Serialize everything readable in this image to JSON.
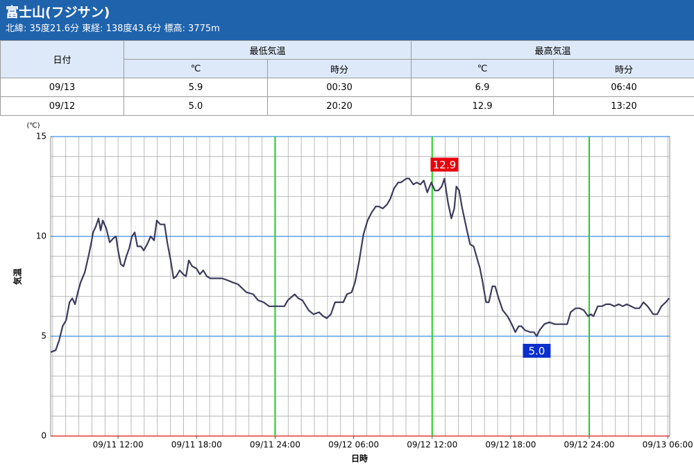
{
  "header": {
    "title": "富士山(フジサン)",
    "subtitle": "北緯: 35度21.6分 東経: 138度43.6分 標高: 3775m"
  },
  "table": {
    "date_header": "日付",
    "group_headers": [
      "最低気温",
      "最高気温"
    ],
    "sub_headers": [
      "℃",
      "時分",
      "℃",
      "時分"
    ],
    "rows": [
      [
        "09/13",
        "5.9",
        "00:30",
        "6.9",
        "06:40"
      ],
      [
        "09/12",
        "5.0",
        "20:20",
        "12.9",
        "13:20"
      ]
    ]
  },
  "chart_data": {
    "type": "line",
    "unit_label": "(℃)",
    "y_label": "気温",
    "x_label": "日時",
    "color": "#3a3a5c",
    "x": [
      6.86,
      7.23,
      7.5,
      7.76,
      8.03,
      8.29,
      8.5,
      8.71,
      8.93,
      9.14,
      9.46,
      9.77,
      9.99,
      10.09,
      10.3,
      10.51,
      10.67,
      10.83,
      11.1,
      11.36,
      11.63,
      11.84,
      12.0,
      12.21,
      12.42,
      12.63,
      12.85,
      13.06,
      13.27,
      13.48,
      13.75,
      13.96,
      14.22,
      14.49,
      14.75,
      14.96,
      15.23,
      15.55,
      15.76,
      16.02,
      16.24,
      16.45,
      16.71,
      16.98,
      17.19,
      17.4,
      17.67,
      17.98,
      18.25,
      18.51,
      18.78,
      19.04,
      19.31,
      19.94,
      20.37,
      20.74,
      21.16,
      21.8,
      22.33,
      22.7,
      23.12,
      23.54,
      23.92,
      24.44,
      24.71,
      24.97,
      25.5,
      25.77,
      26.09,
      26.56,
      26.93,
      27.36,
      27.68,
      27.94,
      28.26,
      28.58,
      28.89,
      29.21,
      29.48,
      29.85,
      30.11,
      30.43,
      30.75,
      31.07,
      31.38,
      31.7,
      31.91,
      32.23,
      32.55,
      32.81,
      33.08,
      33.4,
      33.61,
      33.82,
      34.03,
      34.24,
      34.56,
      34.83,
      35.09,
      35.36,
      35.62,
      35.94,
      36.2,
      36.47,
      36.73,
      36.94,
      37.21,
      37.47,
      37.69,
      37.85,
      38.06,
      38.27,
      38.59,
      38.9,
      39.17,
      39.43,
      39.65,
      39.86,
      40.12,
      40.33,
      40.6,
      40.81,
      41.08,
      41.39,
      41.76,
      42.08,
      42.35,
      42.61,
      42.82,
      43.09,
      43.51,
      43.78,
      43.99,
      44.2,
      44.57,
      44.94,
      45.37,
      45.79,
      46.32,
      46.58,
      46.96,
      47.27,
      47.59,
      47.91,
      48.12,
      48.33,
      48.65,
      48.97,
      49.29,
      49.6,
      49.92,
      50.24,
      50.56,
      50.87,
      51.19,
      51.51,
      51.83,
      52.15,
      52.46,
      52.89,
      53.2,
      53.52,
      53.84,
      54.11
    ],
    "values": [
      4.2,
      4.3,
      4.8,
      5.5,
      5.8,
      6.7,
      6.9,
      6.6,
      7.2,
      7.7,
      8.2,
      9.1,
      9.8,
      10.2,
      10.5,
      10.9,
      10.3,
      10.8,
      10.4,
      9.7,
      9.9,
      10.0,
      9.3,
      8.6,
      8.5,
      9.0,
      9.4,
      10.0,
      10.2,
      9.5,
      9.5,
      9.3,
      9.6,
      10.0,
      9.8,
      10.8,
      10.6,
      10.6,
      9.7,
      8.8,
      7.9,
      8.0,
      8.3,
      8.1,
      8.0,
      8.8,
      8.5,
      8.4,
      8.1,
      8.3,
      8.0,
      7.9,
      7.9,
      7.9,
      7.8,
      7.7,
      7.6,
      7.2,
      7.1,
      6.8,
      6.7,
      6.5,
      6.5,
      6.5,
      6.5,
      6.8,
      7.1,
      6.9,
      6.8,
      6.3,
      6.1,
      6.2,
      6.0,
      5.9,
      6.1,
      6.7,
      6.7,
      6.7,
      7.1,
      7.2,
      7.7,
      8.8,
      10.1,
      10.8,
      11.2,
      11.5,
      11.5,
      11.4,
      11.6,
      11.9,
      12.4,
      12.7,
      12.7,
      12.8,
      12.9,
      12.9,
      12.6,
      12.7,
      12.6,
      12.8,
      12.2,
      12.7,
      12.3,
      12.3,
      12.5,
      12.9,
      11.7,
      10.9,
      11.4,
      12.5,
      12.3,
      11.5,
      10.5,
      9.6,
      9.5,
      8.9,
      8.4,
      7.7,
      6.7,
      6.7,
      7.5,
      7.5,
      6.9,
      6.3,
      6.0,
      5.6,
      5.2,
      5.5,
      5.5,
      5.3,
      5.2,
      5.2,
      5.0,
      5.3,
      5.6,
      5.7,
      5.6,
      5.6,
      5.6,
      6.2,
      6.4,
      6.4,
      6.3,
      6.0,
      6.1,
      6.0,
      6.5,
      6.5,
      6.6,
      6.6,
      6.5,
      6.6,
      6.5,
      6.6,
      6.5,
      6.4,
      6.4,
      6.7,
      6.5,
      6.1,
      6.1,
      6.5,
      6.7,
      6.9
    ],
    "xlim": [
      6.85,
      54.15
    ],
    "ylim": [
      0,
      15
    ],
    "yticks": [
      0,
      5,
      10,
      15
    ],
    "xticks": [
      {
        "value": 12,
        "label": "09/11 12:00"
      },
      {
        "value": 18,
        "label": "09/11 18:00"
      },
      {
        "value": 24,
        "label": "09/11 24:00"
      },
      {
        "value": 30,
        "label": "09/12 06:00"
      },
      {
        "value": 36,
        "label": "09/12 12:00"
      },
      {
        "value": 42,
        "label": "09/12 18:00"
      },
      {
        "value": 48,
        "label": "09/12 24:00"
      },
      {
        "value": 54,
        "label": "09/13 06:00"
      }
    ],
    "grid": {
      "minor_x": 1,
      "minor_y": 1,
      "major_x": [
        24,
        36,
        48
      ]
    },
    "annotations": [
      {
        "label": "12.9",
        "x": 36.94,
        "value": 12.9,
        "color": "#e8000b",
        "side": "above"
      },
      {
        "label": "5.0",
        "x": 43.99,
        "value": 5.0,
        "color": "#0a2fcc",
        "side": "below"
      }
    ]
  }
}
